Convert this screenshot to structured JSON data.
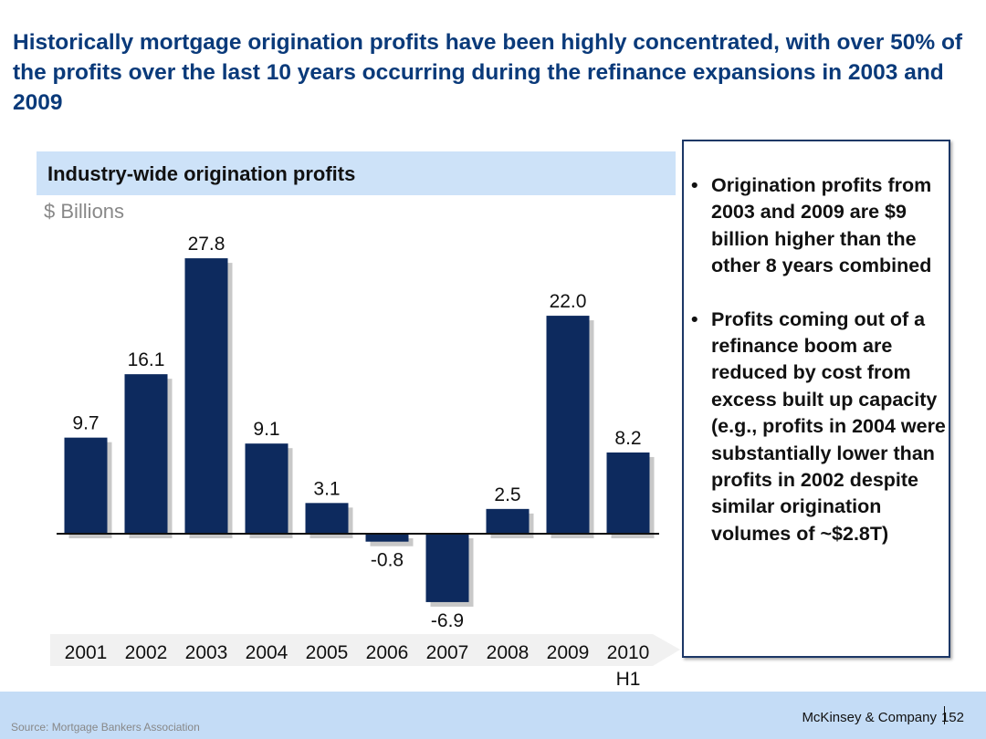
{
  "title": "Historically mortgage origination profits have been highly concentrated, with over 50% of the profits over the last 10 years occurring during the refinance expansions in 2003 and 2009",
  "chart_data": {
    "type": "bar",
    "title": "Industry-wide origination profits",
    "ylabel": "$ Billions",
    "categories": [
      "2001",
      "2002",
      "2003",
      "2004",
      "2005",
      "2006",
      "2007",
      "2008",
      "2009",
      "2010"
    ],
    "category_sublabels": [
      "",
      "",
      "",
      "",
      "",
      "",
      "",
      "",
      "",
      "H1"
    ],
    "values": [
      9.7,
      16.1,
      27.8,
      9.1,
      3.1,
      -0.8,
      -6.9,
      2.5,
      22.0,
      8.2
    ],
    "data_labels": [
      "9.7",
      "16.1",
      "27.8",
      "9.1",
      "3.1",
      "-0.8",
      "-6.9",
      "2.5",
      "22.0",
      "8.2"
    ],
    "ylim": [
      -6.9,
      27.8
    ],
    "grid": false,
    "bar_color": "#0d2a5e"
  },
  "notes": [
    "Origination profits from 2003 and 2009 are $9 billion higher than the other 8 years combined",
    "Profits coming out of a refinance boom are reduced by cost from excess built up capacity (e.g., profits in 2004 were substantially lower than profits in 2002 despite similar origination volumes of ~$2.8T)"
  ],
  "footer": {
    "source": "Source: Mortgage Bankers Association",
    "brand": "McKinsey & Company",
    "page": "152"
  }
}
